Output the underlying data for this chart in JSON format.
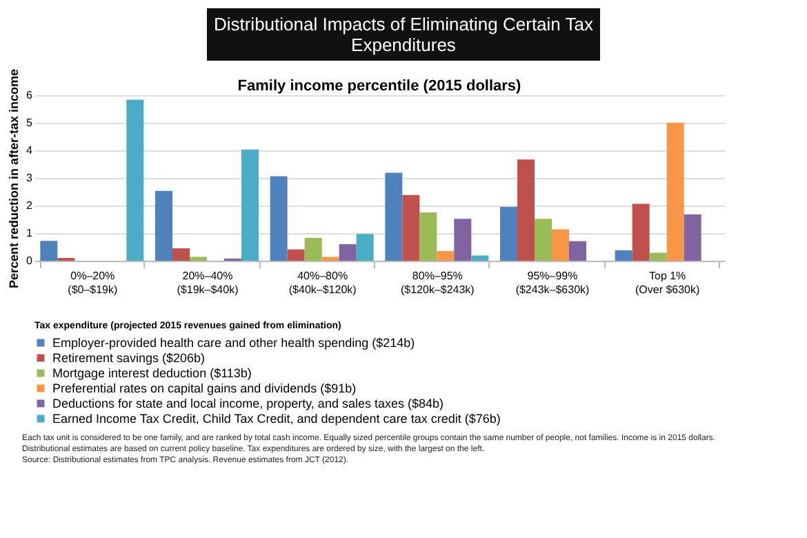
{
  "chart_data": {
    "type": "bar",
    "title": "Distributional Impacts of Eliminating Certain Tax Expenditures",
    "subtitle": "Family income percentile (2015 dollars)",
    "ylabel": "Percent reduction in after-tax income",
    "legend_title": "Tax expenditure (projected 2015 revenues gained from elimination)",
    "categories": [
      "0%–20%\n($0–$19k)",
      "20%–40%\n($19k–$40k)",
      "40%–80%\n($40k–$120k)",
      "80%–95%\n($120k–$243k)",
      "95%–99%\n($243k–$630k)",
      "Top 1%\n(Over $630k)"
    ],
    "series": [
      {
        "name": "Employer-provided health care and other health spending ($214b)",
        "color": "#4f81bd",
        "values": [
          0.72,
          2.53,
          3.06,
          3.19,
          1.95,
          0.38
        ]
      },
      {
        "name": "Retirement savings ($206b)",
        "color": "#c0504d",
        "values": [
          0.1,
          0.45,
          0.41,
          2.38,
          3.67,
          2.06
        ]
      },
      {
        "name": "Mortgage interest deduction ($113b)",
        "color": "#9bbb59",
        "values": [
          0,
          0.14,
          0.83,
          1.75,
          1.52,
          0.29
        ]
      },
      {
        "name": "Preferential rates on capital gains and dividends ($91b)",
        "color": "#f79646",
        "values": [
          0,
          0,
          0.14,
          0.35,
          1.14,
          5.0
        ]
      },
      {
        "name": "Deductions for state and local income, property, and sales taxes ($84b)",
        "color": "#8064a2",
        "values": [
          0,
          0.08,
          0.6,
          1.52,
          0.71,
          1.68
        ]
      },
      {
        "name": "Earned Income Tax Credit, Child Tax Credit, and dependent care tax credit ($76b)",
        "color": "#4bacc6",
        "values": [
          5.84,
          4.03,
          0.97,
          0.19,
          0,
          0
        ]
      }
    ],
    "ylim": [
      0,
      6
    ],
    "yticks": [
      0,
      1,
      2,
      3,
      4,
      5,
      6
    ],
    "grid": "y",
    "legend": "bottom",
    "annotations": [
      "Each tax unit is considered to be one family, and are ranked by total cash income. Equally sized percentile groups contain the same number of people, not families.  Income is in 2015 dollars.",
      "Distributional estimates are based on current policy baseline.  Tax expenditures are ordered by size, with the largest on the left.",
      "Source: Distributional estimates from TPC analysis.  Revenue estimates from JCT (2012)."
    ]
  }
}
